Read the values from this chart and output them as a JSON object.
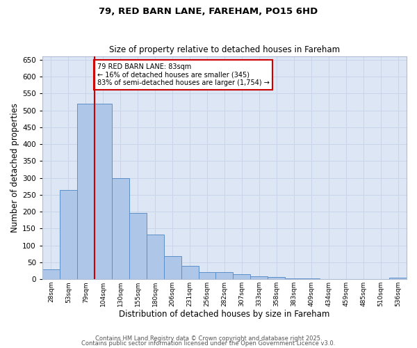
{
  "title1": "79, RED BARN LANE, FAREHAM, PO15 6HD",
  "title2": "Size of property relative to detached houses in Fareham",
  "xlabel": "Distribution of detached houses by size in Fareham",
  "ylabel": "Number of detached properties",
  "bin_labels": [
    "28sqm",
    "53sqm",
    "79sqm",
    "104sqm",
    "130sqm",
    "155sqm",
    "180sqm",
    "206sqm",
    "231sqm",
    "256sqm",
    "282sqm",
    "307sqm",
    "333sqm",
    "358sqm",
    "383sqm",
    "409sqm",
    "434sqm",
    "459sqm",
    "485sqm",
    "510sqm",
    "536sqm"
  ],
  "bar_heights": [
    30,
    265,
    520,
    520,
    300,
    197,
    132,
    68,
    40,
    22,
    22,
    14,
    8,
    6,
    2,
    2,
    1,
    0,
    0,
    0,
    5
  ],
  "bar_facecolor": "#aec6e8",
  "bar_edgecolor": "#5b8fc9",
  "vline_x": 2,
  "vline_color": "#cc0000",
  "annotation_text": "79 RED BARN LANE: 83sqm\n← 16% of detached houses are smaller (345)\n83% of semi-detached houses are larger (1,754) →",
  "annotation_box_edgecolor": "#cc0000",
  "annotation_box_facecolor": "#ffffff",
  "grid_color": "#c8d4e8",
  "background_color": "#dce6f5",
  "ylim": [
    0,
    660
  ],
  "yticks": [
    0,
    50,
    100,
    150,
    200,
    250,
    300,
    350,
    400,
    450,
    500,
    550,
    600,
    650
  ],
  "footer1": "Contains HM Land Registry data © Crown copyright and database right 2025.",
  "footer2": "Contains public sector information licensed under the Open Government Licence v3.0."
}
